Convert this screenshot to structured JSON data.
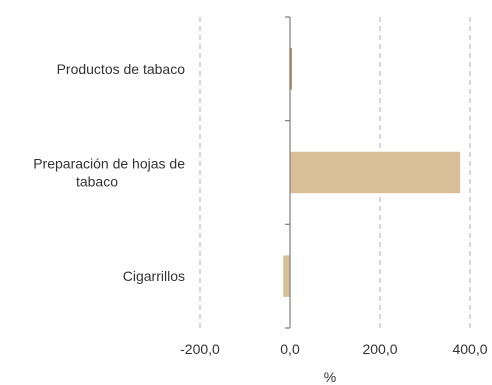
{
  "chart_data": {
    "type": "bar",
    "orientation": "horizontal",
    "categories": [
      [
        "Productos de tabaco"
      ],
      [
        "Preparación de hojas de",
        "tabaco"
      ],
      [
        "Cigarrillos"
      ]
    ],
    "values": [
      4.0,
      378.0,
      -15.0
    ],
    "bar_colors": [
      "#b07b45",
      "#d8bf98",
      "#d8bf98"
    ],
    "xlim": [
      -200,
      400
    ],
    "xticks": [
      {
        "value": -200,
        "label": "-200,0"
      },
      {
        "value": 0,
        "label": "0,0"
      },
      {
        "value": 200,
        "label": "200,0"
      },
      {
        "value": 400,
        "label": "400,0"
      }
    ],
    "xlabel": "%",
    "gridlines": "dashed vertical",
    "grid_color": "#b0b0b0",
    "axis_color": "#7f7f7f",
    "text_color": "#333333"
  }
}
